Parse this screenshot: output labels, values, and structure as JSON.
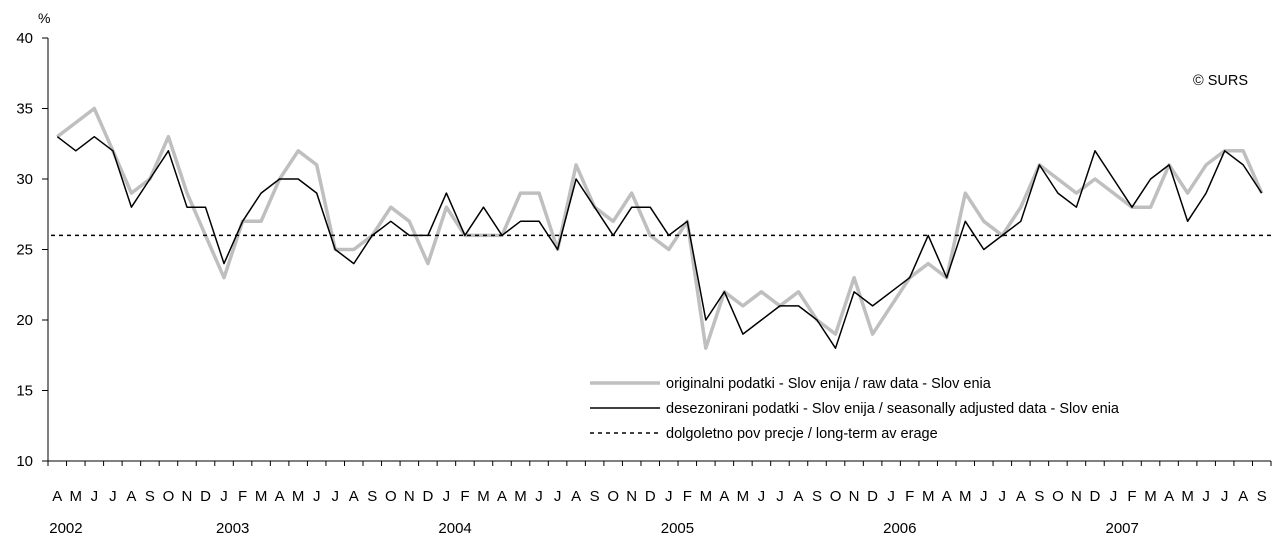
{
  "chart_data": {
    "type": "line",
    "ylabel": "%",
    "ylim": [
      10,
      40
    ],
    "yticks": [
      10,
      15,
      20,
      25,
      30,
      35,
      40
    ],
    "grid": false,
    "legend_position": "bottom-right",
    "copyright": "© SURS",
    "month_labels": [
      "A",
      "M",
      "J",
      "J",
      "A",
      "S",
      "O",
      "N",
      "D",
      "J",
      "F",
      "M",
      "A",
      "M",
      "J",
      "J",
      "A",
      "S",
      "O",
      "N",
      "D",
      "J",
      "F",
      "M",
      "A",
      "M",
      "J",
      "J",
      "A",
      "S",
      "O",
      "N",
      "D",
      "J",
      "F",
      "M",
      "A",
      "M",
      "J",
      "J",
      "A",
      "S",
      "O",
      "N",
      "D",
      "J",
      "F",
      "M",
      "A",
      "M",
      "J",
      "J",
      "A",
      "S",
      "O",
      "N",
      "D",
      "J",
      "F",
      "M",
      "A",
      "M",
      "J",
      "J",
      "A",
      "S"
    ],
    "year_labels": [
      {
        "label": "2002",
        "month_index": 0
      },
      {
        "label": "2003",
        "month_index": 9
      },
      {
        "label": "2004",
        "month_index": 21
      },
      {
        "label": "2005",
        "month_index": 33
      },
      {
        "label": "2006",
        "month_index": 45
      },
      {
        "label": "2007",
        "month_index": 57
      }
    ],
    "series": [
      {
        "name": "originalni podatki - Slov enija / raw data - Slov enia",
        "style": "thick-gray",
        "color": "#bfbfbf",
        "values": [
          33,
          34,
          35,
          32,
          29,
          30,
          33,
          29,
          26,
          23,
          27,
          27,
          30,
          32,
          31,
          25,
          25,
          26,
          28,
          27,
          24,
          28,
          26,
          26,
          26,
          29,
          29,
          25,
          31,
          28,
          27,
          29,
          26,
          25,
          27,
          18,
          22,
          21,
          22,
          21,
          22,
          20,
          19,
          23,
          19,
          21,
          23,
          24,
          23,
          29,
          27,
          26,
          28,
          31,
          30,
          29,
          30,
          29,
          28,
          28,
          31,
          29,
          31,
          32,
          32,
          29
        ]
      },
      {
        "name": "desezonirani podatki - Slov enija / seasonally adjusted data - Slov enia",
        "style": "thin-black",
        "color": "#000000",
        "values": [
          33,
          32,
          33,
          32,
          28,
          30,
          32,
          28,
          28,
          24,
          27,
          29,
          30,
          30,
          29,
          25,
          24,
          26,
          27,
          26,
          26,
          29,
          26,
          28,
          26,
          27,
          27,
          25,
          30,
          28,
          26,
          28,
          28,
          26,
          27,
          20,
          22,
          19,
          20,
          21,
          21,
          20,
          18,
          22,
          21,
          22,
          23,
          26,
          23,
          27,
          25,
          26,
          27,
          31,
          29,
          28,
          32,
          30,
          28,
          30,
          31,
          27,
          29,
          32,
          31,
          29
        ]
      },
      {
        "name": "dolgoletno pov precje / long-term av erage",
        "style": "dotted-black",
        "color": "#000000",
        "constant": 26
      }
    ]
  }
}
